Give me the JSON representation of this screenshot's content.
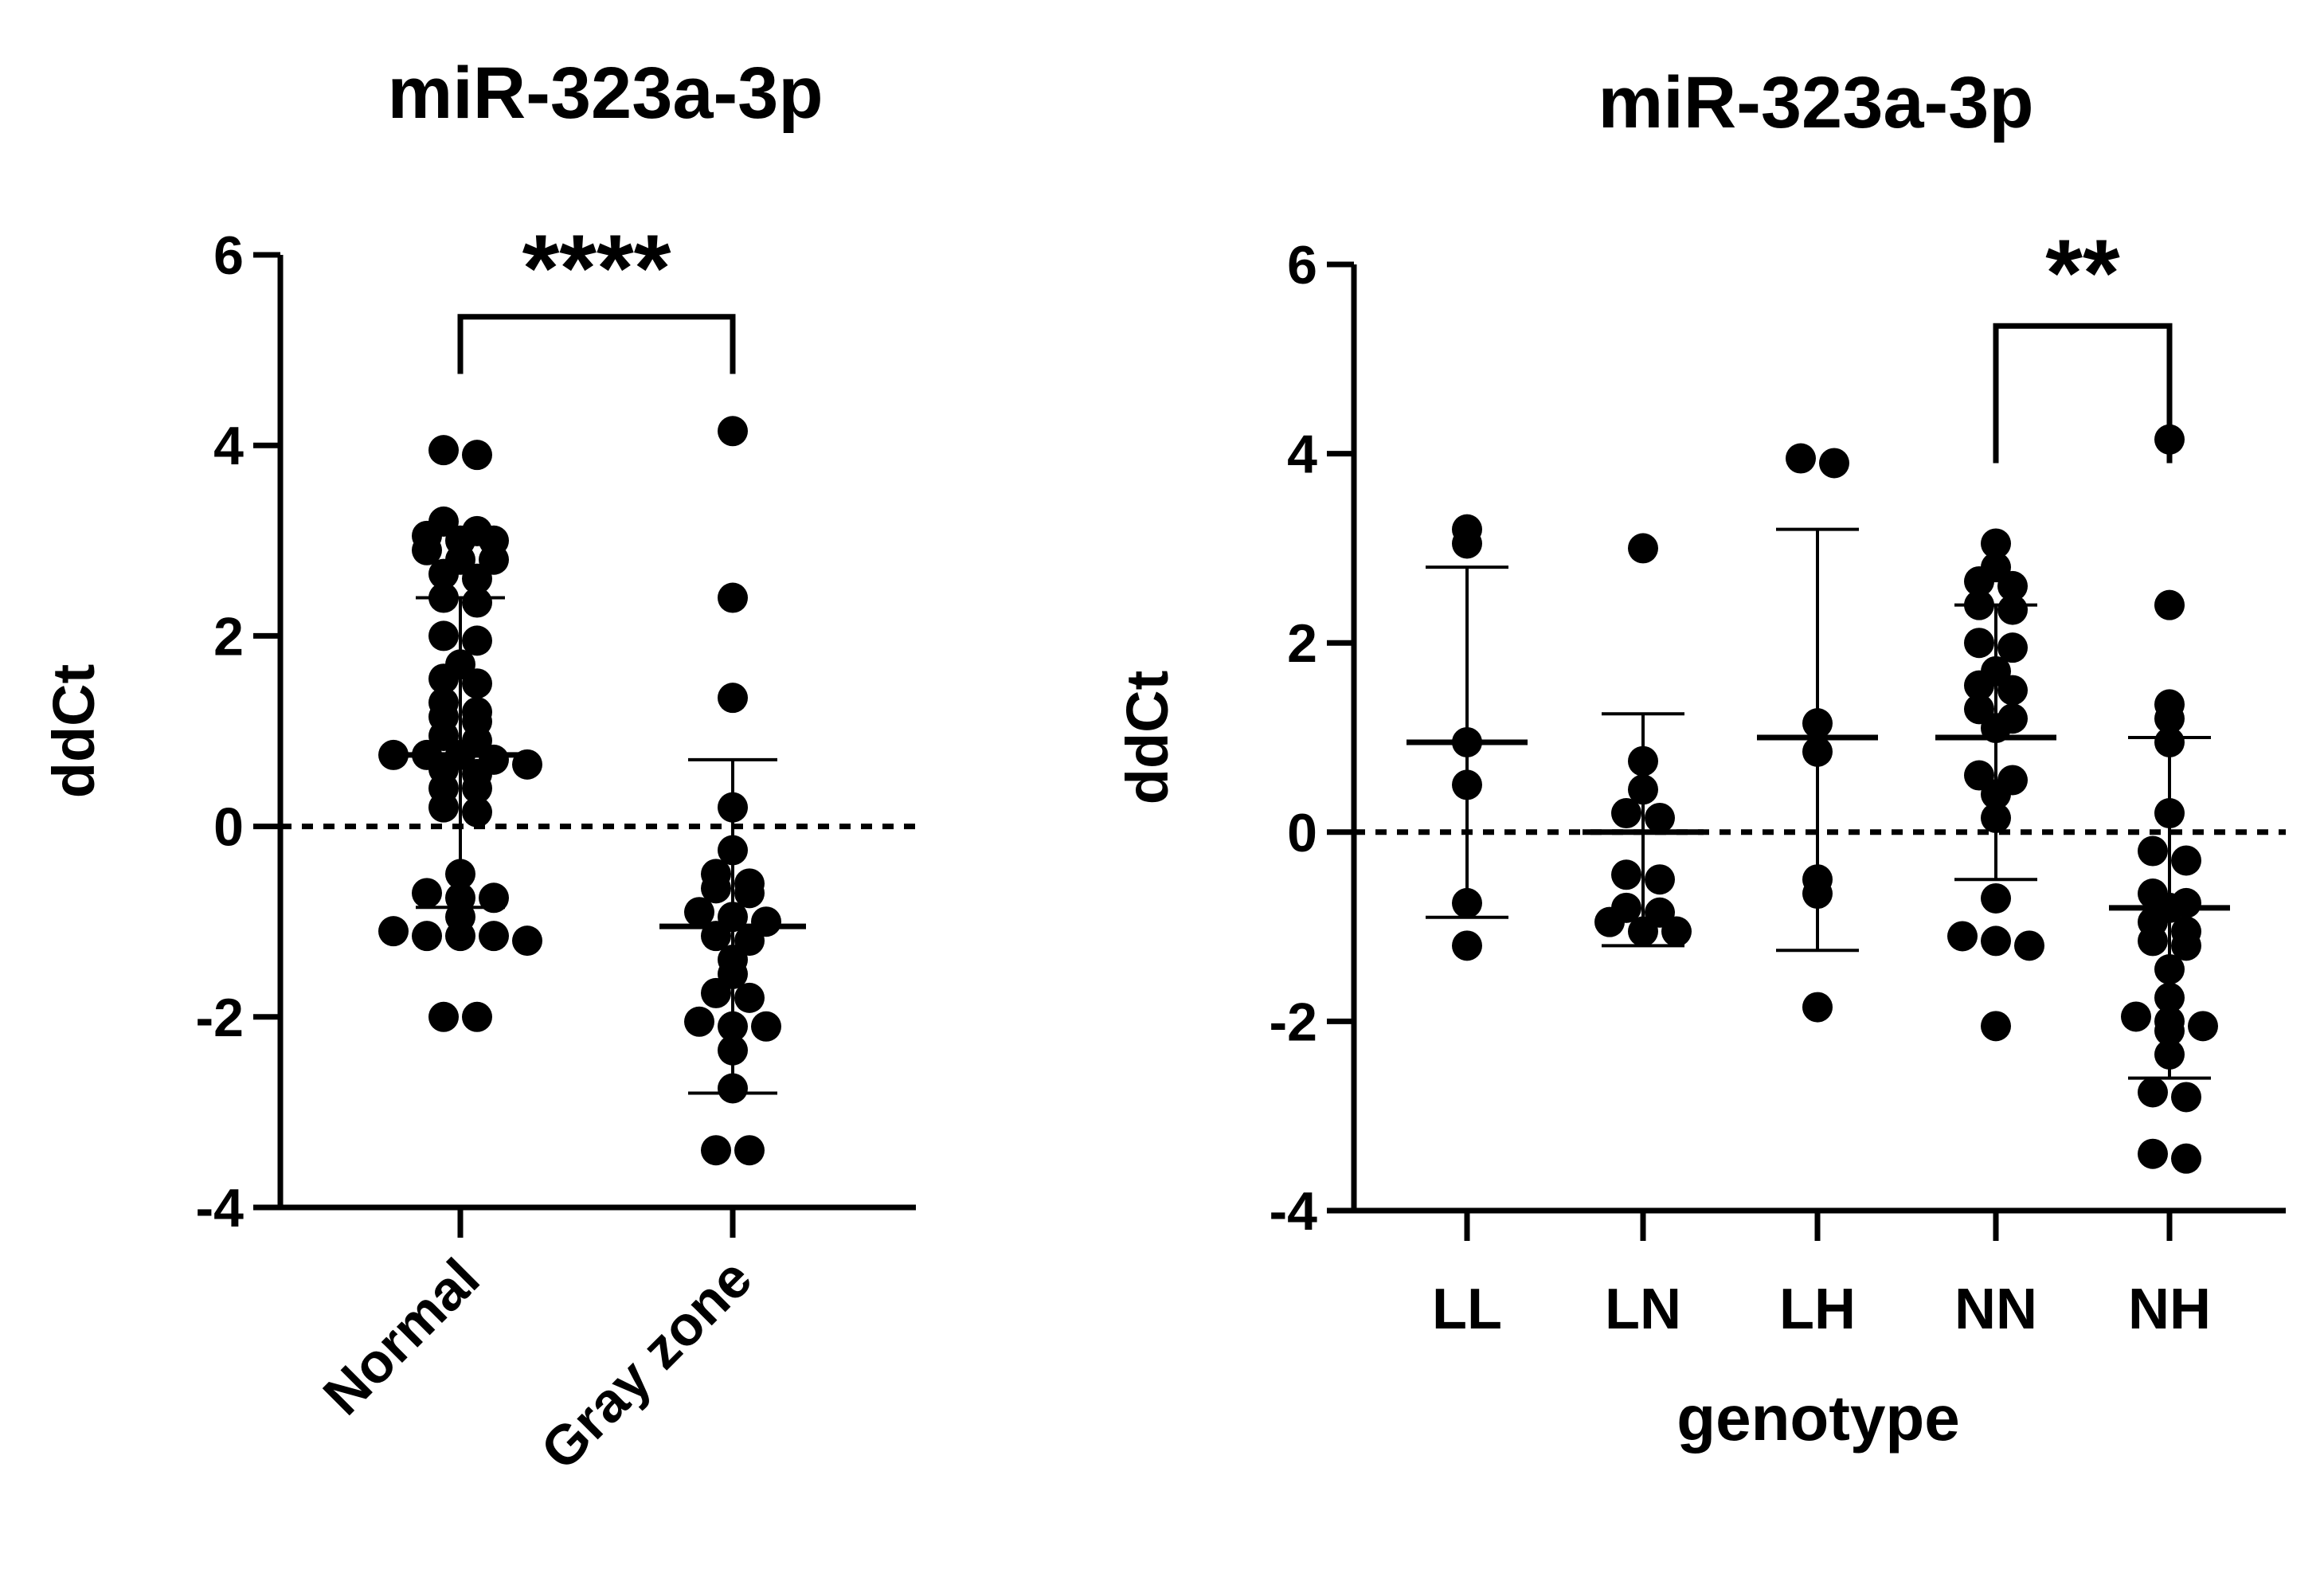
{
  "chart_data": [
    {
      "type": "scatter",
      "title": "miR-323a-3p",
      "xlabel": "",
      "ylabel": "ddCt",
      "ylim": [
        -4,
        6
      ],
      "yticks": [
        "6",
        "4",
        "2",
        "0",
        "-2",
        "-4"
      ],
      "reference_line": 0,
      "categories": [
        "Normal",
        "Gray zone"
      ],
      "groups": [
        {
          "name": "Normal",
          "mean": 0.75,
          "sd_upper": 2.4,
          "sd_lower": -0.85,
          "points": [
            3.95,
            3.9,
            3.2,
            3.1,
            3.05,
            3.0,
            3.0,
            2.9,
            2.8,
            2.8,
            2.65,
            2.6,
            2.4,
            2.35,
            2.0,
            1.95,
            1.7,
            1.55,
            1.5,
            1.3,
            1.2,
            1.15,
            1.1,
            0.95,
            0.9,
            0.75,
            0.75,
            0.75,
            0.7,
            0.65,
            0.6,
            0.55,
            0.4,
            0.4,
            0.2,
            0.15,
            -0.5,
            -0.7,
            -0.75,
            -0.75,
            -0.95,
            -1.1,
            -1.15,
            -1.15,
            -1.15,
            -1.2,
            -2.0,
            -2.0
          ]
        },
        {
          "name": "Gray zone",
          "mean": -1.05,
          "sd_upper": 0.7,
          "sd_lower": -2.8,
          "points": [
            4.15,
            2.4,
            1.35,
            0.2,
            -0.25,
            -0.5,
            -0.6,
            -0.65,
            -0.7,
            -0.9,
            -0.95,
            -1.0,
            -1.15,
            -1.2,
            -1.4,
            -1.55,
            -1.75,
            -1.8,
            -2.05,
            -2.1,
            -2.1,
            -2.35,
            -2.75,
            -3.4,
            -3.4
          ]
        }
      ],
      "comparisons": [
        {
          "from": "Normal",
          "to": "Gray zone",
          "label": "****"
        }
      ]
    },
    {
      "type": "scatter",
      "title": "miR-323a-3p",
      "xlabel": "genotype",
      "ylabel": "ddCt",
      "ylim": [
        -4,
        6
      ],
      "yticks": [
        "6",
        "4",
        "2",
        "0",
        "-2",
        "-4"
      ],
      "reference_line": 0,
      "categories": [
        "LL",
        "LN",
        "LH",
        "NN",
        "NH"
      ],
      "groups": [
        {
          "name": "LL",
          "mean": 0.95,
          "sd_upper": 2.8,
          "sd_lower": -0.9,
          "points": [
            3.2,
            3.05,
            0.95,
            0.5,
            -0.75,
            -1.2
          ]
        },
        {
          "name": "LN",
          "mean": 0.0,
          "sd_upper": 1.25,
          "sd_lower": -1.2,
          "points": [
            3.0,
            0.75,
            0.45,
            0.2,
            0.15,
            -0.45,
            -0.5,
            -0.8,
            -0.85,
            -0.95,
            -1.05,
            -1.05
          ]
        },
        {
          "name": "LH",
          "mean": 1.0,
          "sd_upper": 3.2,
          "sd_lower": -1.25,
          "points": [
            3.95,
            3.9,
            1.15,
            0.85,
            -0.5,
            -0.65,
            -1.85
          ]
        },
        {
          "name": "NN",
          "mean": 1.0,
          "sd_upper": 2.4,
          "sd_lower": -0.5,
          "points": [
            3.05,
            2.8,
            2.65,
            2.6,
            2.4,
            2.35,
            2.0,
            1.95,
            1.7,
            1.55,
            1.5,
            1.3,
            1.2,
            1.1,
            0.6,
            0.55,
            0.4,
            0.15,
            -0.7,
            -1.1,
            -1.15,
            -1.2,
            -2.05
          ]
        },
        {
          "name": "NH",
          "mean": -0.8,
          "sd_upper": 1.0,
          "sd_lower": -2.6,
          "points": [
            4.15,
            2.4,
            1.35,
            1.2,
            0.95,
            0.2,
            -0.2,
            -0.3,
            -0.65,
            -0.75,
            -0.8,
            -0.95,
            -1.05,
            -1.15,
            -1.2,
            -1.45,
            -1.75,
            -1.95,
            -2.0,
            -2.05,
            -2.1,
            -2.35,
            -2.75,
            -2.8,
            -3.4,
            -3.45
          ]
        }
      ],
      "comparisons": [
        {
          "from": "NN",
          "to": "NH",
          "label": "**"
        }
      ]
    }
  ]
}
